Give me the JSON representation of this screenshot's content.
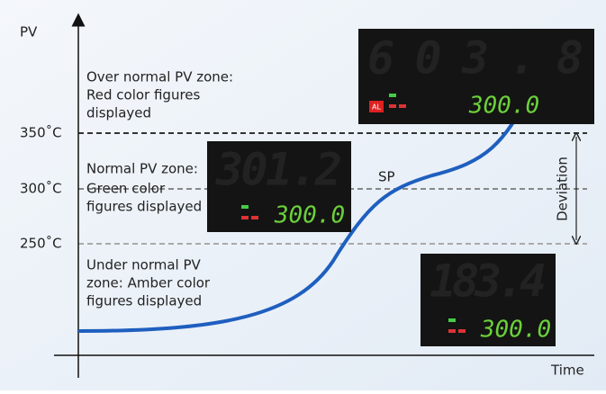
{
  "axes": {
    "y_label": "PV",
    "x_label": "Time",
    "levels": [
      "350˚C",
      "300˚C",
      "250˚C"
    ]
  },
  "zones": [
    {
      "lines": [
        "Over normal PV zone:",
        "Red color figures",
        "displayed"
      ]
    },
    {
      "lines": [
        "Normal PV zone:",
        "Green color",
        "figures displayed"
      ]
    },
    {
      "lines": [
        "Under normal PV",
        "zone: Amber color",
        "figures displayed"
      ]
    }
  ],
  "sp_label": "SP",
  "deviation_label": "Deviation",
  "displays": [
    {
      "pv": "603.8",
      "sp": "300.0",
      "alarm": "AL"
    },
    {
      "pv": "301.2",
      "sp": "300.0"
    },
    {
      "pv": "183.4",
      "sp": "300.0"
    }
  ]
}
